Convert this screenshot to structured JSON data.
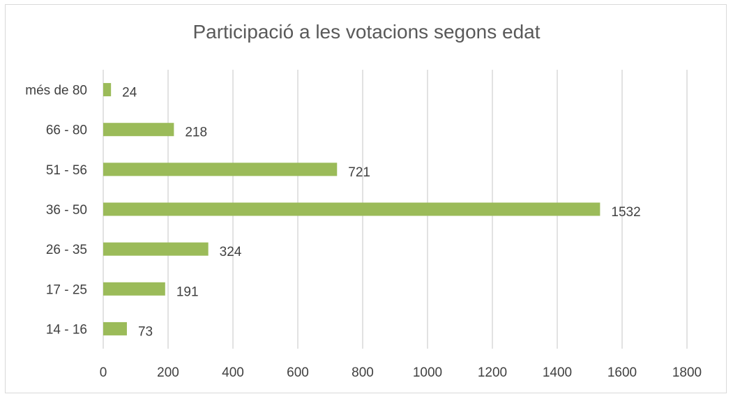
{
  "chart_data": {
    "type": "bar",
    "orientation": "horizontal",
    "title": "Participació a les votacions segons edat",
    "categories": [
      "14 - 16",
      "17 - 25",
      "26 - 35",
      "36 - 50",
      "51 - 56",
      "66 - 80",
      "més de 80"
    ],
    "values": [
      73,
      191,
      324,
      1532,
      721,
      218,
      24
    ],
    "xlim": [
      0,
      1800
    ],
    "x_ticks": [
      "0",
      "200",
      "400",
      "600",
      "800",
      "1000",
      "1200",
      "1400",
      "1600",
      "1800"
    ],
    "grid": true,
    "legend": "none",
    "bar_color": "#9bbb59",
    "grid_color": "#d9d9d9",
    "data_labels": true
  }
}
